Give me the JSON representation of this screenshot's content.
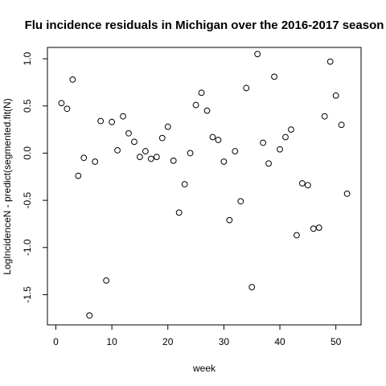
{
  "chart_data": {
    "type": "scatter",
    "title": "Flu incidence residuals in Michigan over the 2016-2017 season",
    "xlabel": "week",
    "ylabel": "LogIncidenceN - predict(segmented.fit(N)",
    "xlim": [
      -1.5,
      54.5
    ],
    "ylim": [
      -1.82,
      1.12
    ],
    "xticks": [
      0,
      10,
      20,
      30,
      40,
      50
    ],
    "yticks": [
      -1.5,
      -1.0,
      -0.5,
      0.0,
      0.5,
      1.0
    ],
    "xtick_labels": [
      "0",
      "10",
      "20",
      "30",
      "40",
      "50"
    ],
    "ytick_labels": [
      "-1.5",
      "-1.0",
      "-0.5",
      "0.0",
      "0.5",
      "1.0"
    ],
    "grid": false,
    "marker": "open-circle",
    "x": [
      1,
      2,
      3,
      4,
      5,
      6,
      7,
      8,
      9,
      10,
      11,
      12,
      13,
      14,
      15,
      16,
      17,
      18,
      19,
      20,
      21,
      22,
      23,
      24,
      25,
      26,
      27,
      28,
      29,
      30,
      31,
      32,
      33,
      34,
      35,
      36,
      37,
      38,
      39,
      40,
      41,
      42,
      43,
      44,
      45,
      46,
      47,
      48,
      49,
      50,
      51,
      52
    ],
    "y": [
      0.53,
      0.47,
      0.78,
      -0.24,
      -0.05,
      -1.72,
      -0.09,
      0.34,
      -1.35,
      0.33,
      0.03,
      0.39,
      0.21,
      0.12,
      -0.04,
      0.02,
      -0.06,
      -0.04,
      0.16,
      0.28,
      -0.08,
      -0.63,
      -0.33,
      0.0,
      0.51,
      0.64,
      0.45,
      0.17,
      0.14,
      -0.09,
      -0.71,
      0.02,
      -0.51,
      0.69,
      -1.42,
      1.05,
      0.11,
      -0.11,
      0.81,
      0.04,
      0.17,
      0.25,
      -0.87,
      -0.32,
      -0.34,
      -0.8,
      -0.79,
      0.39,
      0.97,
      0.61,
      0.3,
      -0.43
    ]
  }
}
